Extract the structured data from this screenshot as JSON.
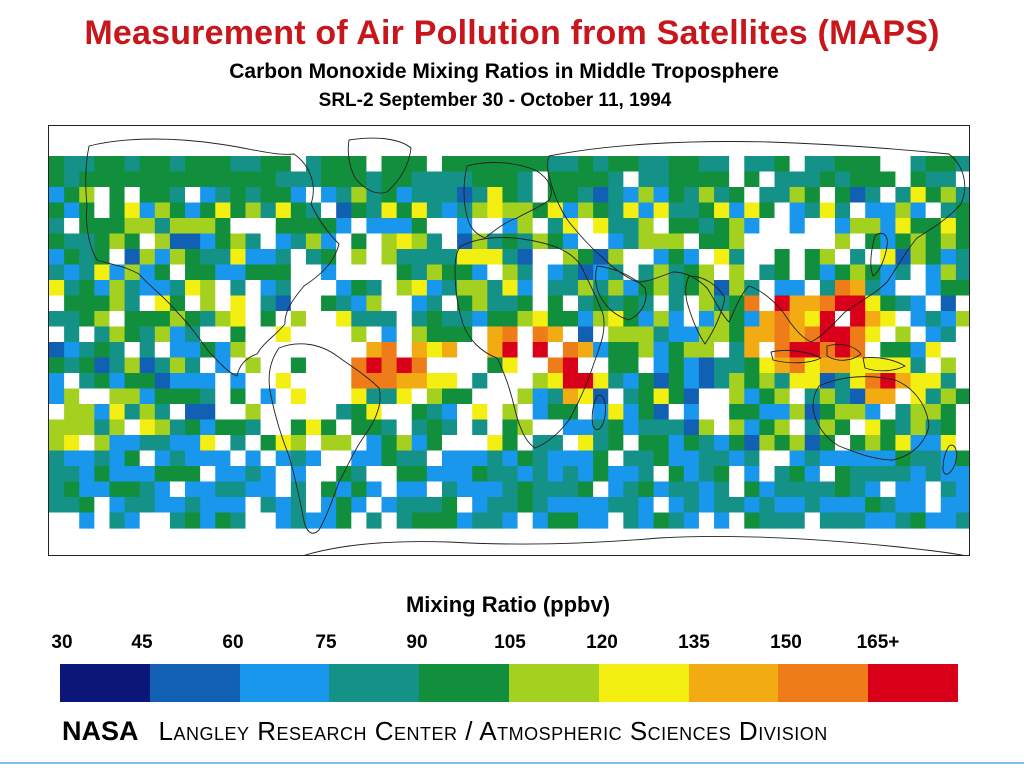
{
  "header": {
    "title": "Measurement of Air Pollution from Satellites (MAPS)",
    "subtitle": "Carbon Monoxide Mixing Ratios in Middle Troposphere",
    "period": "SRL-2 September 30 - October 11, 1994"
  },
  "legend": {
    "title": "Mixing Ratio (ppbv)",
    "ticks": [
      "30",
      "45",
      "60",
      "75",
      "90",
      "105",
      "120",
      "135",
      "150",
      "165+"
    ],
    "colors": [
      "#0a1778",
      "#1260b4",
      "#1897ec",
      "#159287",
      "#128f3c",
      "#a4d01f",
      "#f4ef12",
      "#f3ab14",
      "#ee7c19",
      "#d9001a"
    ]
  },
  "footer": {
    "agency": "NASA",
    "division": "Langley Research Center / Atmospheric Sciences Division"
  },
  "map": {
    "palette": {
      "navy": "#0a1778",
      "blue": "#1260b4",
      "sky": "#1897ec",
      "teal": "#159287",
      "green": "#128f3c",
      "lime": "#a4d01f",
      "yellow": "#f4ef12",
      "amber": "#f3ab14",
      "orange": "#ee7c19",
      "red": "#d9001a",
      "white": "#ffffff"
    }
  }
}
